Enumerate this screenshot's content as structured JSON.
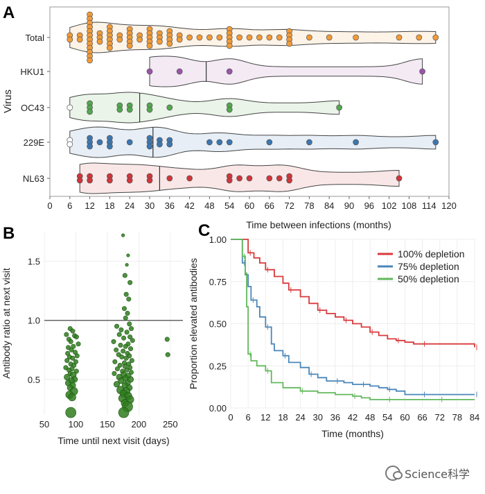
{
  "panels": {
    "A": {
      "letter": "A",
      "chart_data": {
        "type": "violin",
        "ylabel": "Virus",
        "xlabel": "Time between infections (months)",
        "xlim": [
          0,
          120
        ],
        "xticks": [
          0,
          6,
          12,
          18,
          24,
          30,
          36,
          42,
          48,
          54,
          60,
          66,
          72,
          78,
          84,
          90,
          96,
          102,
          108,
          114,
          120
        ],
        "categories": [
          "Total",
          "HKU1",
          "OC43",
          "229E",
          "NL63"
        ],
        "colors": {
          "Total": "#f29b38",
          "HKU1": "#9a55a8",
          "OC43": "#52a84e",
          "229E": "#3c77b1",
          "NL63": "#d0363b"
        },
        "series": [
          {
            "name": "Total",
            "median": null,
            "range": [
              6,
              116
            ],
            "points": [
              6,
              6,
              9,
              9,
              12,
              12,
              12,
              12,
              12,
              12,
              12,
              12,
              12,
              12,
              12,
              12,
              15,
              15,
              15,
              18,
              18,
              18,
              18,
              18,
              18,
              21,
              21,
              24,
              24,
              24,
              24,
              24,
              27,
              27,
              30,
              30,
              30,
              30,
              30,
              33,
              33,
              33,
              36,
              36,
              36,
              36,
              39,
              39,
              42,
              45,
              48,
              51,
              54,
              54,
              54,
              54,
              54,
              57,
              60,
              63,
              66,
              69,
              72,
              72,
              72,
              72,
              78,
              84,
              92,
              105,
              111,
              116
            ]
          },
          {
            "name": "HKU1",
            "median": 47,
            "range": [
              30,
              112
            ],
            "points": [
              30,
              39,
              54,
              112
            ]
          },
          {
            "name": "OC43",
            "median": 27,
            "range": [
              6,
              87
            ],
            "points": [
              6,
              12,
              12,
              12,
              21,
              21,
              24,
              24,
              30,
              30,
              36,
              54,
              54,
              87
            ]
          },
          {
            "name": "229E",
            "median": 31,
            "range": [
              6,
              116
            ],
            "points": [
              6,
              6,
              12,
              12,
              12,
              15,
              18,
              18,
              18,
              24,
              30,
              30,
              30,
              33,
              33,
              36,
              36,
              48,
              51,
              54,
              66,
              78,
              92,
              116
            ]
          },
          {
            "name": "NL63",
            "median": 33,
            "range": [
              9,
              105
            ],
            "points": [
              9,
              9,
              12,
              12,
              18,
              18,
              24,
              24,
              30,
              30,
              36,
              42,
              54,
              54,
              57,
              60,
              66,
              69,
              72,
              72,
              105
            ]
          }
        ]
      }
    },
    "B": {
      "letter": "B",
      "chart_data": {
        "type": "scatter",
        "xlabel": "Time until next visit (days)",
        "ylabel": "Antibody ratio at next visit",
        "xlim": [
          50,
          270
        ],
        "ylim": [
          0.2,
          1.75
        ],
        "xticks": [
          50,
          100,
          150,
          200,
          250
        ],
        "yticks": [
          0.5,
          1.0,
          1.5
        ],
        "reference_line_y": 1.0,
        "color": "#2f7d1e",
        "points": [
          [
            91,
            0.93
          ],
          [
            95,
            0.91
          ],
          [
            85,
            0.88
          ],
          [
            98,
            0.87
          ],
          [
            101,
            0.86
          ],
          [
            89,
            0.84
          ],
          [
            92,
            0.82
          ],
          [
            104,
            0.8
          ],
          [
            96,
            0.78
          ],
          [
            88,
            0.77
          ],
          [
            93,
            0.75
          ],
          [
            99,
            0.73
          ],
          [
            87,
            0.72
          ],
          [
            102,
            0.7
          ],
          [
            90,
            0.69
          ],
          [
            95,
            0.68
          ],
          [
            86,
            0.66
          ],
          [
            100,
            0.65
          ],
          [
            92,
            0.63
          ],
          [
            97,
            0.62
          ],
          [
            84,
            0.6
          ],
          [
            94,
            0.59
          ],
          [
            89,
            0.58
          ],
          [
            101,
            0.57
          ],
          [
            91,
            0.55
          ],
          [
            96,
            0.54
          ],
          [
            86,
            0.52
          ],
          [
            98,
            0.5
          ],
          [
            93,
            0.49
          ],
          [
            88,
            0.47
          ],
          [
            95,
            0.45
          ],
          [
            91,
            0.43
          ],
          [
            97,
            0.4
          ],
          [
            90,
            0.37
          ],
          [
            94,
            0.35
          ],
          [
            92,
            0.22
          ],
          [
            175,
            1.72
          ],
          [
            183,
            1.55
          ],
          [
            181,
            1.47
          ],
          [
            178,
            1.38
          ],
          [
            186,
            1.32
          ],
          [
            180,
            1.22
          ],
          [
            184,
            1.18
          ],
          [
            177,
            1.1
          ],
          [
            182,
            1.06
          ],
          [
            179,
            1.02
          ],
          [
            185,
            0.97
          ],
          [
            165,
            0.95
          ],
          [
            188,
            0.93
          ],
          [
            172,
            0.92
          ],
          [
            181,
            0.9
          ],
          [
            169,
            0.88
          ],
          [
            186,
            0.86
          ],
          [
            176,
            0.85
          ],
          [
            190,
            0.83
          ],
          [
            160,
            0.82
          ],
          [
            183,
            0.8
          ],
          [
            171,
            0.79
          ],
          [
            179,
            0.78
          ],
          [
            187,
            0.76
          ],
          [
            164,
            0.75
          ],
          [
            175,
            0.74
          ],
          [
            182,
            0.72
          ],
          [
            168,
            0.71
          ],
          [
            185,
            0.7
          ],
          [
            173,
            0.69
          ],
          [
            180,
            0.68
          ],
          [
            189,
            0.66
          ],
          [
            162,
            0.65
          ],
          [
            177,
            0.64
          ],
          [
            184,
            0.63
          ],
          [
            170,
            0.62
          ],
          [
            178,
            0.61
          ],
          [
            186,
            0.6
          ],
          [
            166,
            0.59
          ],
          [
            181,
            0.58
          ],
          [
            174,
            0.57
          ],
          [
            188,
            0.56
          ],
          [
            161,
            0.55
          ],
          [
            176,
            0.54
          ],
          [
            183,
            0.53
          ],
          [
            169,
            0.52
          ],
          [
            179,
            0.51
          ],
          [
            187,
            0.5
          ],
          [
            172,
            0.49
          ],
          [
            182,
            0.47
          ],
          [
            165,
            0.46
          ],
          [
            178,
            0.45
          ],
          [
            185,
            0.43
          ],
          [
            171,
            0.41
          ],
          [
            180,
            0.4
          ],
          [
            176,
            0.38
          ],
          [
            183,
            0.36
          ],
          [
            174,
            0.34
          ],
          [
            186,
            0.33
          ],
          [
            178,
            0.3
          ],
          [
            182,
            0.27
          ],
          [
            176,
            0.22
          ],
          [
            245,
            0.84
          ],
          [
            246,
            0.71
          ]
        ]
      }
    },
    "C": {
      "letter": "C",
      "chart_data": {
        "type": "line",
        "xlabel": "Time (months)",
        "ylabel": "Proportion elevated antibodies",
        "xlim": [
          0,
          84
        ],
        "ylim": [
          0,
          1.0
        ],
        "xticks": [
          0,
          6,
          12,
          18,
          24,
          30,
          36,
          42,
          48,
          54,
          60,
          66,
          72,
          78,
          84
        ],
        "yticks": [
          0.0,
          0.25,
          0.5,
          0.75,
          1.0
        ],
        "legend_position": "top-right",
        "series": [
          {
            "name": "100% depletion",
            "color": "#d9393b",
            "x": [
              0,
              5,
              6,
              8,
              10,
              12,
              15,
              18,
              20,
              24,
              27,
              30,
              33,
              36,
              39,
              42,
              45,
              48,
              51,
              54,
              57,
              60,
              63,
              66,
              72,
              78,
              84
            ],
            "y": [
              1.0,
              1.0,
              0.92,
              0.89,
              0.86,
              0.82,
              0.78,
              0.74,
              0.7,
              0.66,
              0.62,
              0.58,
              0.56,
              0.54,
              0.52,
              0.5,
              0.48,
              0.45,
              0.43,
              0.41,
              0.4,
              0.39,
              0.38,
              0.38,
              0.38,
              0.38,
              0.36
            ]
          },
          {
            "name": "75% depletion",
            "color": "#4b86b9",
            "x": [
              0,
              3,
              4,
              5,
              6,
              7,
              9,
              10,
              12,
              14,
              15,
              18,
              20,
              24,
              27,
              30,
              33,
              36,
              39,
              42,
              45,
              48,
              51,
              54,
              57,
              60,
              66,
              72,
              78,
              84
            ],
            "y": [
              1.0,
              1.0,
              0.86,
              0.79,
              0.72,
              0.64,
              0.6,
              0.54,
              0.48,
              0.38,
              0.34,
              0.31,
              0.27,
              0.24,
              0.2,
              0.18,
              0.16,
              0.16,
              0.15,
              0.14,
              0.14,
              0.13,
              0.12,
              0.11,
              0.1,
              0.08,
              0.08,
              0.08,
              0.08,
              0.08
            ]
          },
          {
            "name": "50% depletion",
            "color": "#62b85c",
            "x": [
              0,
              3,
              4,
              5,
              5.5,
              6,
              7,
              9,
              12,
              14,
              18,
              24,
              30,
              36,
              42,
              45,
              48,
              54,
              60,
              66,
              72,
              78,
              84
            ],
            "y": [
              1.0,
              1.0,
              0.9,
              0.8,
              0.6,
              0.32,
              0.28,
              0.25,
              0.22,
              0.15,
              0.12,
              0.1,
              0.09,
              0.08,
              0.07,
              0.06,
              0.05,
              0.05,
              0.05,
              0.05,
              0.05,
              0.05,
              0.05
            ]
          }
        ]
      }
    }
  },
  "watermark": {
    "text": "Science科学",
    "icon": "wechat-icon"
  }
}
